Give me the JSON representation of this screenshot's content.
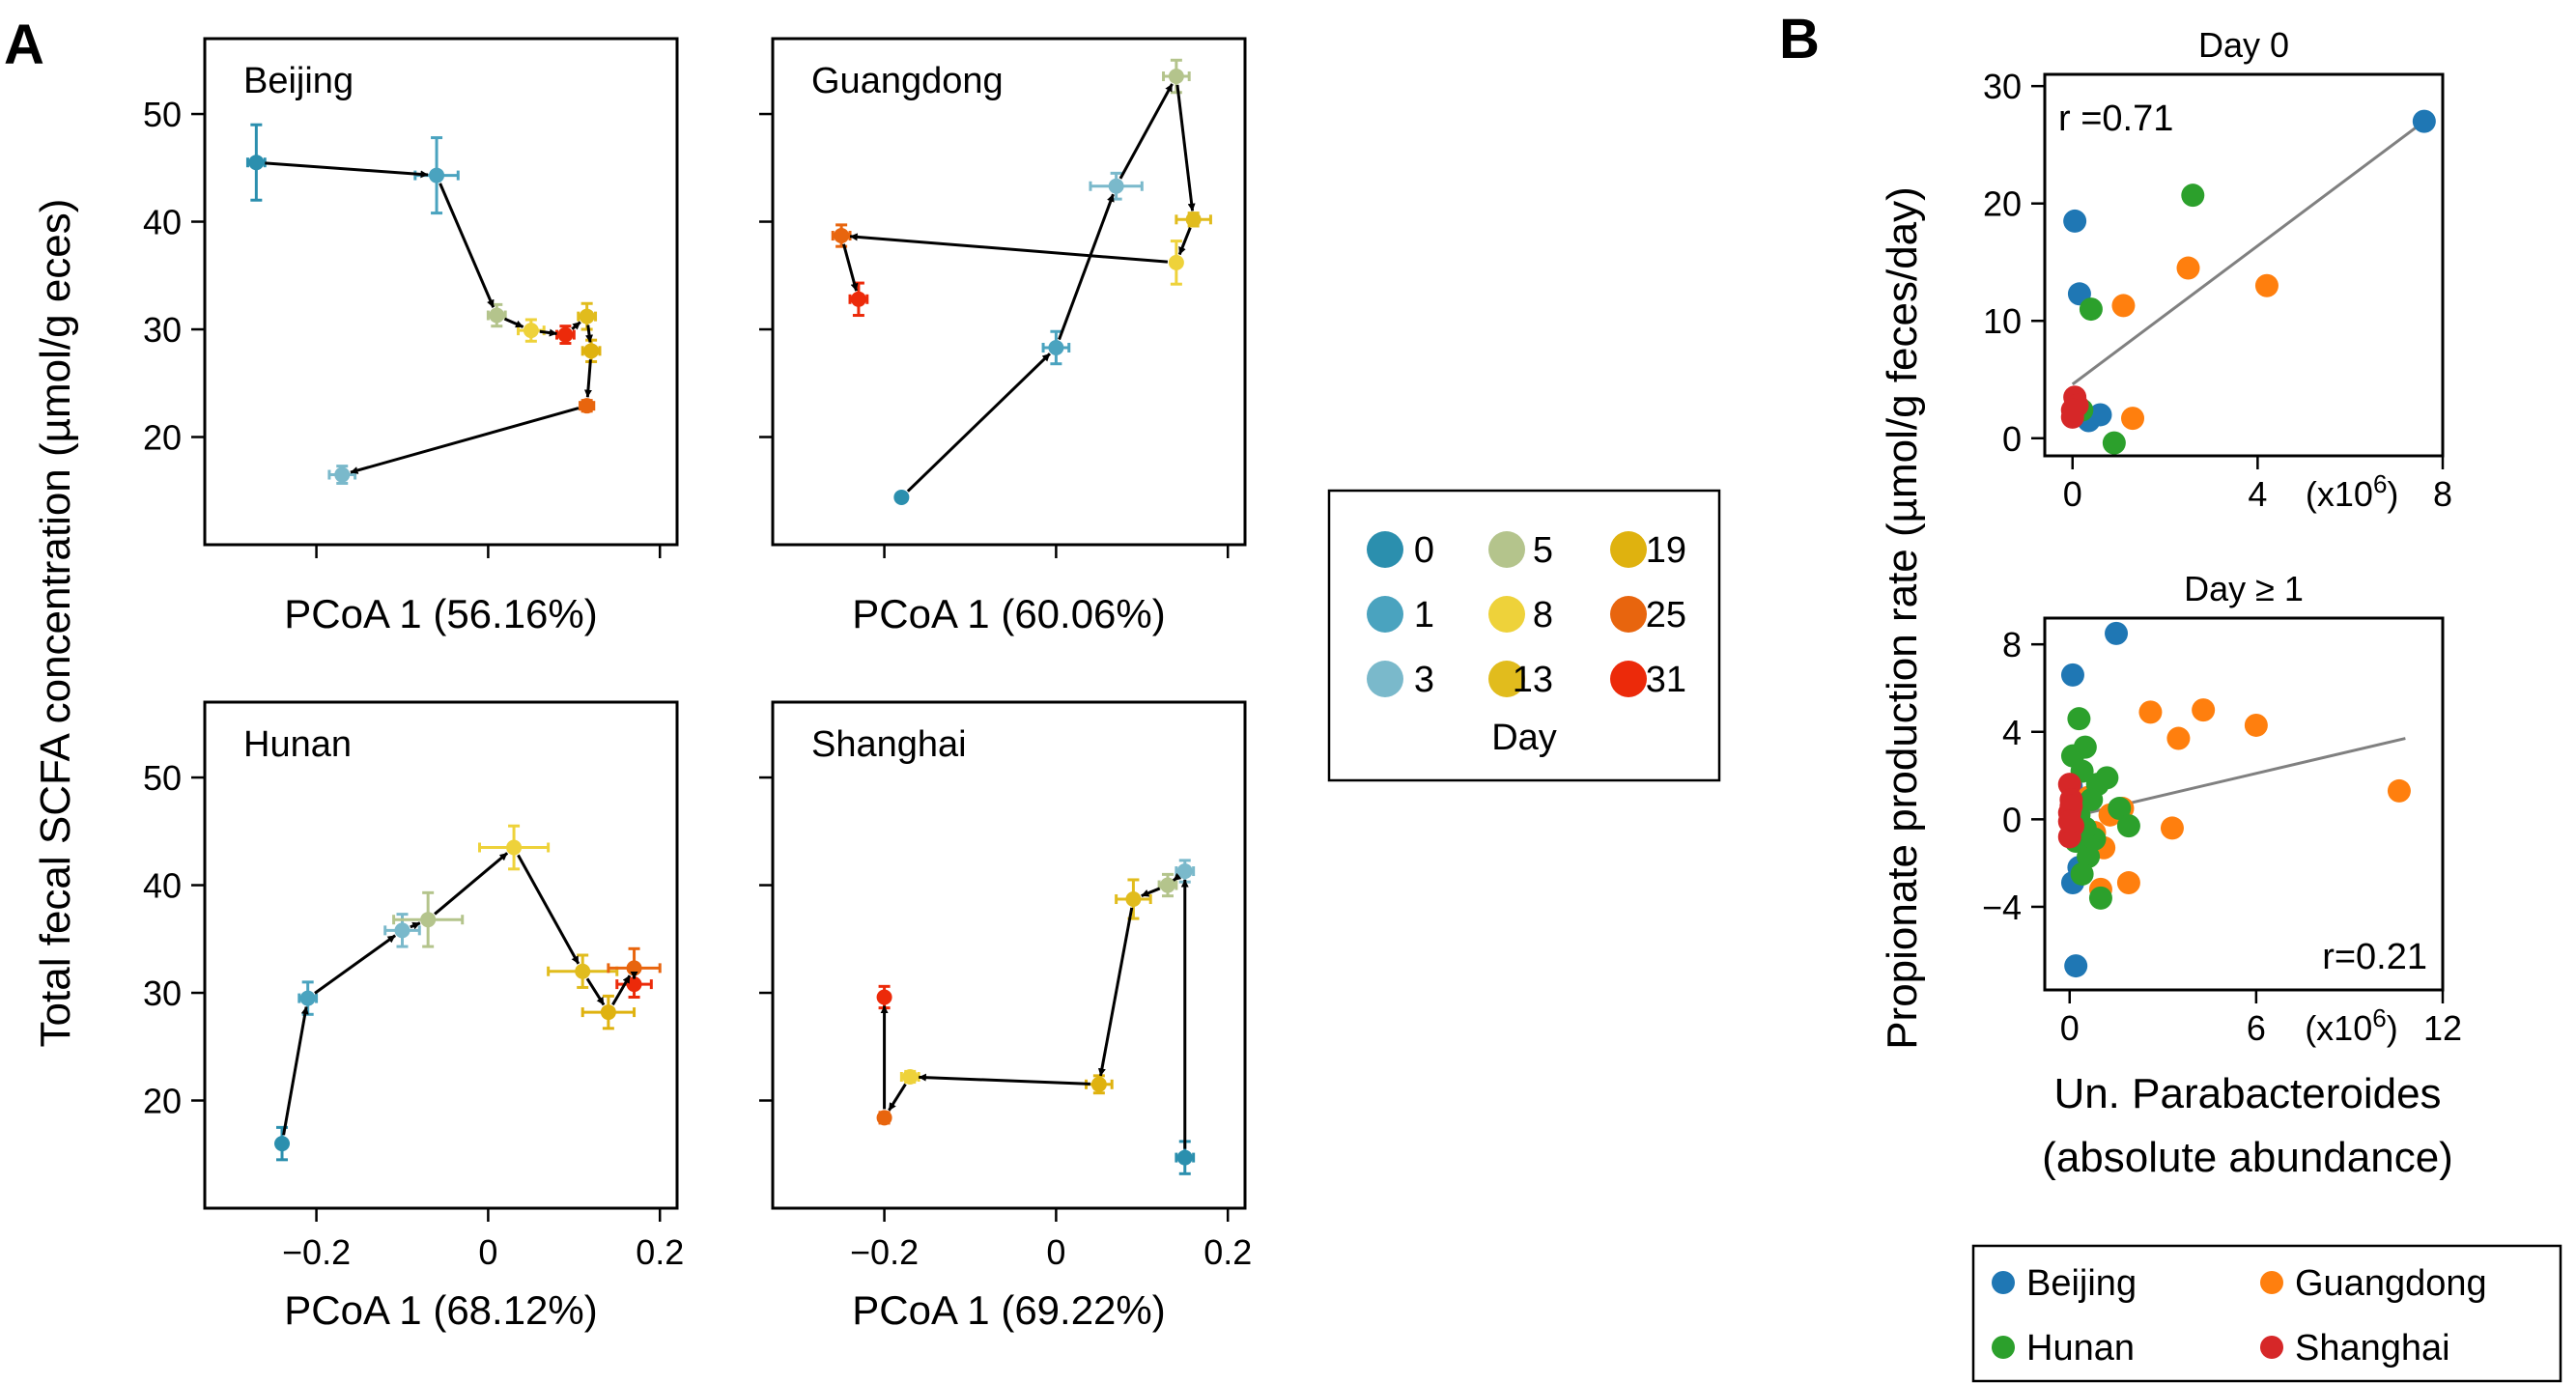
{
  "panel_labels": [
    "A",
    "B"
  ],
  "legend_a": {
    "title": "Day",
    "items": [
      {
        "label": "0",
        "color": "#2b8fae"
      },
      {
        "label": "1",
        "color": "#4aa3bf"
      },
      {
        "label": "3",
        "color": "#7ab9cb"
      },
      {
        "label": "5",
        "color": "#b4c48c"
      },
      {
        "label": "8",
        "color": "#eed23a"
      },
      {
        "label": "13",
        "color": "#e1bc1d"
      },
      {
        "label": "19",
        "color": "#dfb20f"
      },
      {
        "label": "25",
        "color": "#e8650e"
      },
      {
        "label": "31",
        "color": "#ec2a0a"
      }
    ]
  },
  "legend_b": {
    "items": [
      {
        "label": "Beijing",
        "color": "#1f77b4"
      },
      {
        "label": "Guangdong",
        "color": "#ff7f0e"
      },
      {
        "label": "Hunan",
        "color": "#2ca02c"
      },
      {
        "label": "Shanghai",
        "color": "#d62728"
      }
    ]
  },
  "chart_data": [
    {
      "type": "scatter",
      "panel": "A",
      "title": "Beijing",
      "xlabel": "PCoA 1 (56.16%)",
      "ylabel": "Total fecal SCFA concentration (µmol/g eces)",
      "xlim": [
        -0.33,
        0.22
      ],
      "ylim": [
        10,
        57
      ],
      "xticks": [
        -0.2,
        0,
        0.2
      ],
      "yticks": [
        20,
        30,
        40,
        50
      ],
      "show_xtick_labels": false,
      "show_ytick_labels": true,
      "trajectory": [
        {
          "day": "0",
          "x": -0.27,
          "y": 45.5,
          "xerr": 0.01,
          "yerr": 3.5
        },
        {
          "day": "1",
          "x": -0.06,
          "y": 44.3,
          "xerr": 0.025,
          "yerr": 3.5
        },
        {
          "day": "5",
          "x": 0.01,
          "y": 31.3,
          "xerr": 0.01,
          "yerr": 1.0
        },
        {
          "day": "8",
          "x": 0.05,
          "y": 29.9,
          "xerr": 0.015,
          "yerr": 1.0
        },
        {
          "day": "31",
          "x": 0.09,
          "y": 29.5,
          "xerr": 0.01,
          "yerr": 0.8
        },
        {
          "day": "13",
          "x": 0.115,
          "y": 31.2,
          "xerr": 0.01,
          "yerr": 1.2
        },
        {
          "day": "19",
          "x": 0.12,
          "y": 28.0,
          "xerr": 0.01,
          "yerr": 1.0
        },
        {
          "day": "25",
          "x": 0.115,
          "y": 22.9,
          "xerr": 0.008,
          "yerr": 0.5
        },
        {
          "day": "3",
          "x": -0.17,
          "y": 16.5,
          "xerr": 0.015,
          "yerr": 0.8
        }
      ]
    },
    {
      "type": "scatter",
      "panel": "A",
      "title": "Guangdong",
      "xlabel": "PCoA 1 (60.06%)",
      "ylabel": "",
      "xlim": [
        -0.33,
        0.22
      ],
      "ylim": [
        10,
        57
      ],
      "xticks": [
        -0.2,
        0,
        0.2
      ],
      "yticks": [
        20,
        30,
        40,
        50
      ],
      "show_xtick_labels": false,
      "show_ytick_labels": false,
      "trajectory": [
        {
          "day": "0",
          "x": -0.18,
          "y": 14.4,
          "xerr": 0.0,
          "yerr": 0.0
        },
        {
          "day": "1",
          "x": 0.0,
          "y": 28.3,
          "xerr": 0.015,
          "yerr": 1.5
        },
        {
          "day": "3",
          "x": 0.07,
          "y": 43.3,
          "xerr": 0.03,
          "yerr": 1.2
        },
        {
          "day": "5",
          "x": 0.14,
          "y": 53.5,
          "xerr": 0.015,
          "yerr": 1.5
        },
        {
          "day": "13",
          "x": 0.16,
          "y": 40.2,
          "xerr": 0.02,
          "yerr": 0.6
        },
        {
          "day": "8",
          "x": 0.14,
          "y": 36.2,
          "xerr": 0.005,
          "yerr": 2.0
        },
        {
          "day": "25",
          "x": -0.25,
          "y": 38.7,
          "xerr": 0.01,
          "yerr": 1.0
        },
        {
          "day": "31",
          "x": -0.23,
          "y": 32.8,
          "xerr": 0.01,
          "yerr": 1.5
        }
      ]
    },
    {
      "type": "scatter",
      "panel": "A",
      "title": "Hunan",
      "xlabel": "PCoA 1 (68.12%)",
      "ylabel": "",
      "xlim": [
        -0.33,
        0.22
      ],
      "ylim": [
        10,
        57
      ],
      "xticks": [
        -0.2,
        0,
        0.2
      ],
      "yticks": [
        20,
        30,
        40,
        50
      ],
      "show_xtick_labels": true,
      "show_ytick_labels": true,
      "trajectory": [
        {
          "day": "0",
          "x": -0.24,
          "y": 16.0,
          "xerr": 0.005,
          "yerr": 1.5
        },
        {
          "day": "1",
          "x": -0.21,
          "y": 29.5,
          "xerr": 0.01,
          "yerr": 1.5
        },
        {
          "day": "3",
          "x": -0.1,
          "y": 35.8,
          "xerr": 0.02,
          "yerr": 1.5
        },
        {
          "day": "5",
          "x": -0.07,
          "y": 36.8,
          "xerr": 0.04,
          "yerr": 2.5
        },
        {
          "day": "8",
          "x": 0.03,
          "y": 43.5,
          "xerr": 0.04,
          "yerr": 2.0
        },
        {
          "day": "13",
          "x": 0.11,
          "y": 32.0,
          "xerr": 0.04,
          "yerr": 1.5
        },
        {
          "day": "19",
          "x": 0.14,
          "y": 28.2,
          "xerr": 0.03,
          "yerr": 1.5
        },
        {
          "day": "25",
          "x": 0.17,
          "y": 32.3,
          "xerr": 0.03,
          "yerr": 1.8
        },
        {
          "day": "31",
          "x": 0.17,
          "y": 30.8,
          "xerr": 0.02,
          "yerr": 1.2
        }
      ]
    },
    {
      "type": "scatter",
      "panel": "A",
      "title": "Shanghai",
      "xlabel": "PCoA 1 (69.22%)",
      "ylabel": "",
      "xlim": [
        -0.33,
        0.22
      ],
      "ylim": [
        10,
        57
      ],
      "xticks": [
        -0.2,
        0,
        0.2
      ],
      "yticks": [
        20,
        30,
        40,
        50
      ],
      "show_xtick_labels": true,
      "show_ytick_labels": false,
      "trajectory": [
        {
          "day": "0",
          "x": 0.15,
          "y": 14.7,
          "xerr": 0.01,
          "yerr": 1.5
        },
        {
          "day": "3",
          "x": 0.15,
          "y": 41.3,
          "xerr": 0.01,
          "yerr": 1.0
        },
        {
          "day": "5",
          "x": 0.13,
          "y": 40.0,
          "xerr": 0.01,
          "yerr": 1.0
        },
        {
          "day": "13",
          "x": 0.09,
          "y": 38.7,
          "xerr": 0.02,
          "yerr": 1.8
        },
        {
          "day": "19",
          "x": 0.05,
          "y": 21.5,
          "xerr": 0.015,
          "yerr": 0.8
        },
        {
          "day": "8",
          "x": -0.17,
          "y": 22.2,
          "xerr": 0.01,
          "yerr": 0.5
        },
        {
          "day": "25",
          "x": -0.2,
          "y": 18.4,
          "xerr": 0.005,
          "yerr": 0.5
        },
        {
          "day": "31",
          "x": -0.2,
          "y": 29.6,
          "xerr": 0.005,
          "yerr": 1.0
        }
      ]
    },
    {
      "type": "scatter",
      "panel": "B",
      "title": "Day 0",
      "xlabel": "",
      "ylabel": "Propionate production rate (µmol/g feces/day)",
      "xlim": [
        -0.6,
        8
      ],
      "ylim": [
        -1.5,
        31
      ],
      "xticks": [
        0,
        4,
        8
      ],
      "xtick_labels": [
        "0",
        "4",
        "8"
      ],
      "yticks": [
        0,
        10,
        20,
        30
      ],
      "ytick_labels": [
        "0",
        "10",
        "20",
        "30"
      ],
      "x_scale_note": "(x10",
      "x_scale_exponent": "6",
      "x_scale_close": ")",
      "annotation": "r =0.71",
      "fit_line": {
        "x": [
          0,
          7.6
        ],
        "y": [
          4.6,
          27.0
        ]
      },
      "points": [
        {
          "group": "Beijing",
          "x": 7.6,
          "y": 27.0
        },
        {
          "group": "Beijing",
          "x": 0.05,
          "y": 18.5
        },
        {
          "group": "Beijing",
          "x": 0.15,
          "y": 12.3
        },
        {
          "group": "Beijing",
          "x": 0.35,
          "y": 1.5
        },
        {
          "group": "Beijing",
          "x": 0.6,
          "y": 2.0
        },
        {
          "group": "Hunan",
          "x": 2.6,
          "y": 20.7
        },
        {
          "group": "Hunan",
          "x": 0.4,
          "y": 11.0
        },
        {
          "group": "Hunan",
          "x": 0.9,
          "y": -0.4
        },
        {
          "group": "Hunan",
          "x": 0.2,
          "y": 2.4
        },
        {
          "group": "Guangdong",
          "x": 2.5,
          "y": 14.5
        },
        {
          "group": "Guangdong",
          "x": 4.2,
          "y": 13.0
        },
        {
          "group": "Guangdong",
          "x": 1.1,
          "y": 11.3
        },
        {
          "group": "Guangdong",
          "x": 1.3,
          "y": 1.7
        },
        {
          "group": "Shanghai",
          "x": 0.0,
          "y": 1.8
        },
        {
          "group": "Shanghai",
          "x": 0.05,
          "y": 3.5
        },
        {
          "group": "Shanghai",
          "x": 0.1,
          "y": 2.8
        },
        {
          "group": "Shanghai",
          "x": 0.0,
          "y": 2.4
        }
      ]
    },
    {
      "type": "scatter",
      "panel": "B",
      "title": "Day ≥ 1",
      "xlabel": "Un. Parabacteroides (absolute abundance)",
      "xlabel_lines": [
        "Un. Parabacteroides",
        "(absolute abundance)"
      ],
      "ylabel": "",
      "xlim": [
        -0.8,
        12
      ],
      "ylim": [
        -7.8,
        9.2
      ],
      "xticks": [
        0,
        6,
        12
      ],
      "xtick_labels": [
        "0",
        "6",
        "12"
      ],
      "yticks": [
        -4,
        0,
        4,
        8
      ],
      "ytick_labels": [
        "−4",
        "0",
        "4",
        "8"
      ],
      "x_scale_note": "(x10",
      "x_scale_exponent": "6",
      "x_scale_close": ")",
      "annotation": "r=0.21",
      "fit_line": {
        "x": [
          0,
          10.8
        ],
        "y": [
          0.1,
          3.7
        ]
      },
      "points": [
        {
          "group": "Beijing",
          "x": 1.5,
          "y": 8.5
        },
        {
          "group": "Beijing",
          "x": 0.1,
          "y": 6.6
        },
        {
          "group": "Beijing",
          "x": 0.2,
          "y": -6.7
        },
        {
          "group": "Beijing",
          "x": 0.1,
          "y": -2.9
        },
        {
          "group": "Beijing",
          "x": 0.05,
          "y": 1.5
        },
        {
          "group": "Beijing",
          "x": 0.3,
          "y": -2.2
        },
        {
          "group": "Guangdong",
          "x": 10.6,
          "y": 1.3
        },
        {
          "group": "Guangdong",
          "x": 4.3,
          "y": 5.0
        },
        {
          "group": "Guangdong",
          "x": 6.0,
          "y": 4.3
        },
        {
          "group": "Guangdong",
          "x": 2.6,
          "y": 4.9
        },
        {
          "group": "Guangdong",
          "x": 3.5,
          "y": 3.7
        },
        {
          "group": "Guangdong",
          "x": 3.3,
          "y": -0.4
        },
        {
          "group": "Guangdong",
          "x": 1.9,
          "y": -2.9
        },
        {
          "group": "Guangdong",
          "x": 1.0,
          "y": -3.2
        },
        {
          "group": "Guangdong",
          "x": 1.3,
          "y": 0.2
        },
        {
          "group": "Guangdong",
          "x": 1.7,
          "y": 0.5
        },
        {
          "group": "Guangdong",
          "x": 0.6,
          "y": 1.0
        },
        {
          "group": "Guangdong",
          "x": 0.8,
          "y": -0.6
        },
        {
          "group": "Guangdong",
          "x": 1.1,
          "y": -1.3
        },
        {
          "group": "Hunan",
          "x": 0.3,
          "y": 4.6
        },
        {
          "group": "Hunan",
          "x": 0.5,
          "y": 3.3
        },
        {
          "group": "Hunan",
          "x": 0.4,
          "y": 2.2
        },
        {
          "group": "Hunan",
          "x": 0.9,
          "y": 1.6
        },
        {
          "group": "Hunan",
          "x": 1.6,
          "y": 0.5
        },
        {
          "group": "Hunan",
          "x": 1.9,
          "y": -0.3
        },
        {
          "group": "Hunan",
          "x": 0.2,
          "y": -1.0
        },
        {
          "group": "Hunan",
          "x": 0.6,
          "y": -1.7
        },
        {
          "group": "Hunan",
          "x": 0.4,
          "y": -2.5
        },
        {
          "group": "Hunan",
          "x": 1.0,
          "y": -3.6
        },
        {
          "group": "Hunan",
          "x": 0.7,
          "y": 0.9
        },
        {
          "group": "Hunan",
          "x": 0.3,
          "y": 0.2
        },
        {
          "group": "Hunan",
          "x": 1.2,
          "y": 1.9
        },
        {
          "group": "Hunan",
          "x": 0.8,
          "y": -0.9
        },
        {
          "group": "Hunan",
          "x": 0.1,
          "y": 2.9
        },
        {
          "group": "Hunan",
          "x": 0.5,
          "y": -0.4
        },
        {
          "group": "Shanghai",
          "x": 0.0,
          "y": 1.6
        },
        {
          "group": "Shanghai",
          "x": 0.05,
          "y": 0.9
        },
        {
          "group": "Shanghai",
          "x": 0.0,
          "y": 0.3
        },
        {
          "group": "Shanghai",
          "x": 0.1,
          "y": -0.3
        },
        {
          "group": "Shanghai",
          "x": 0.0,
          "y": -0.8
        },
        {
          "group": "Shanghai",
          "x": 0.05,
          "y": 0.6
        },
        {
          "group": "Shanghai",
          "x": 0.0,
          "y": -0.1
        }
      ]
    }
  ]
}
